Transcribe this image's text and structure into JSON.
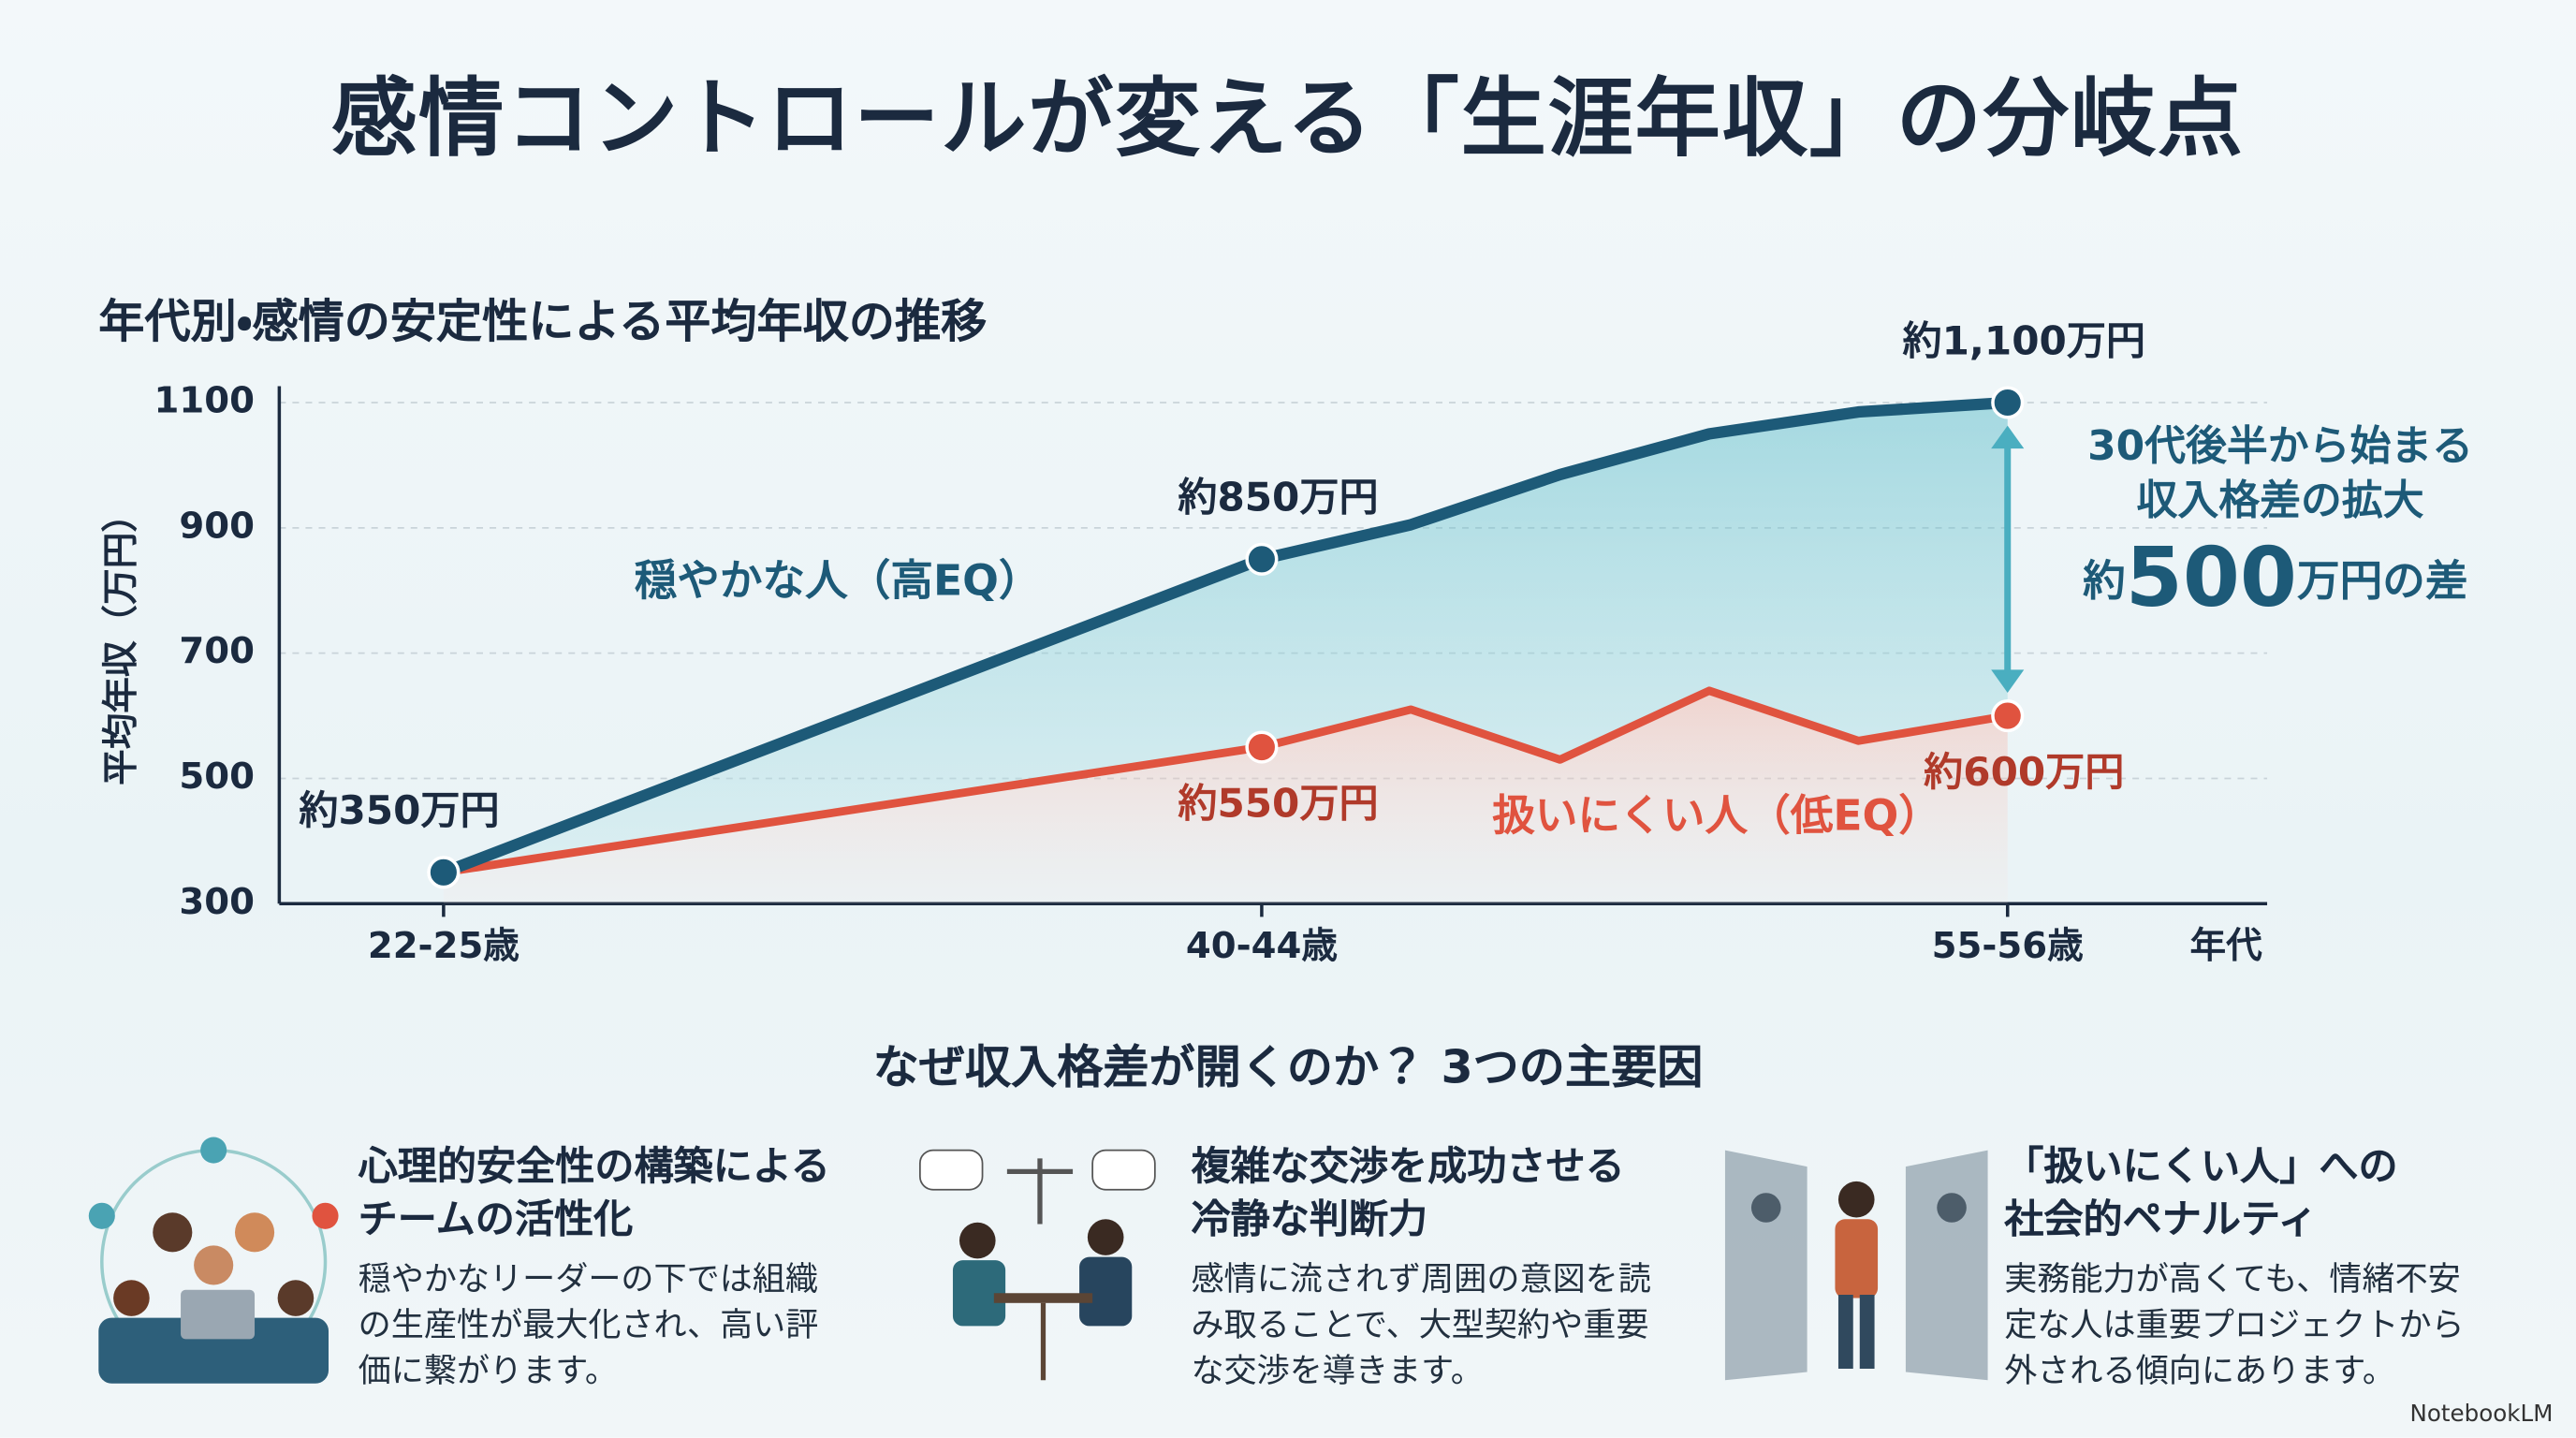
{
  "header": {
    "title": "感情コントロールが変える「生涯年収」の分岐点"
  },
  "chart_data": {
    "type": "line",
    "title": "年代別・感情の安定性による平均年収の推移",
    "x_label": "年代",
    "y_label": "平均年収（万円）",
    "categories": [
      "22-25歳",
      "40-44歳",
      null,
      null,
      null,
      null,
      "55-56歳"
    ],
    "series": [
      {
        "name": "穏やかな人（高EQ）",
        "color": "#1d5a78",
        "values": [
          350,
          850,
          905,
          985,
          1050,
          1085,
          1100
        ],
        "value_labels": [
          "約350万円",
          "約850万円",
          null,
          null,
          null,
          null,
          "約1,100万円"
        ]
      },
      {
        "name": "扱いにくい人（低EQ）",
        "color": "#e0533f",
        "values": [
          350,
          550,
          610,
          530,
          640,
          560,
          600
        ],
        "value_labels": [
          null,
          "約550万円",
          null,
          null,
          null,
          null,
          "約600万円"
        ]
      }
    ],
    "ylim": [
      300,
      1100
    ],
    "yticks": [
      300,
      500,
      700,
      900,
      1100
    ],
    "grid": true,
    "annotation": {
      "line1": "30代後半から始まる",
      "line2": "収入格差の拡大",
      "prefix": "約",
      "value": "500",
      "suffix": "万円の差"
    }
  },
  "factors": {
    "heading": "なぜ収入格差が開くのか？ 3つの主要因",
    "items": [
      {
        "title": [
          "心理的安全性の構築による",
          "チームの活性化"
        ],
        "body": "穏やかなリーダーの下では組織の生産性が最大化され、高い評価に繋がります。"
      },
      {
        "title": [
          "複雑な交渉を成功させる",
          "冷静な判断力"
        ],
        "body": "感情に流されず周囲の意図を読み取ることで、大型契約や重要な交渉を導きます。"
      },
      {
        "title": [
          "「扱いにくい人」への",
          "社会的ペナルティ"
        ],
        "body": "実務能力が高くても、情緒不安定な人は重要プロジェクトから外される傾向にあります。"
      }
    ]
  },
  "footer": {
    "brand": "NotebookLM"
  }
}
